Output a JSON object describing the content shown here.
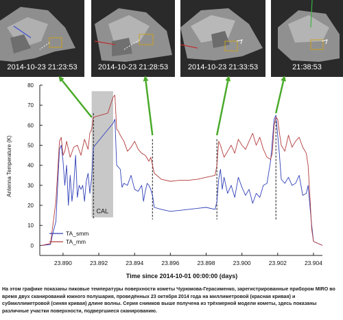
{
  "thumbnails": [
    {
      "label": "2014-10-23  21:23:53"
    },
    {
      "label": "2014-10-23  21:28:53"
    },
    {
      "label": "2014-10-23  21:33:53"
    },
    {
      "label": "21:38:53"
    }
  ],
  "chart_data": {
    "type": "line",
    "title": "",
    "xlabel": "Time since 2014-10-01 00:00:00 (days)",
    "ylabel": "Antenna Temperature (K)",
    "xlim": [
      23.8887,
      23.9045
    ],
    "ylim": [
      -5,
      80
    ],
    "xticks": [
      "23.890",
      "23.892",
      "23.894",
      "23.896",
      "23.898",
      "23.900",
      "23.902",
      "23.904"
    ],
    "yticks": [
      "0",
      "10",
      "20",
      "30",
      "40",
      "50",
      "60",
      "70",
      "80"
    ],
    "legend_position": "bottom-left",
    "grid": false,
    "cal_region": {
      "x": [
        23.8916,
        23.8928
      ],
      "label": "CAL"
    },
    "event_lines": [
      23.8917,
      23.895,
      23.8986,
      23.9019
    ],
    "series": [
      {
        "name": "TA_smm",
        "color": "#2f3fb8",
        "x": [
          23.8888,
          23.8893,
          23.8894,
          23.8896,
          23.8898,
          23.8899,
          23.89,
          23.8901,
          23.8902,
          23.8903,
          23.8904,
          23.8905,
          23.8906,
          23.8907,
          23.8908,
          23.8909,
          23.891,
          23.8911,
          23.8912,
          23.8913,
          23.8914,
          23.8915,
          23.8916,
          23.8917,
          23.8928,
          23.8929,
          23.893,
          23.8931,
          23.8932,
          23.8933,
          23.8934,
          23.8936,
          23.8938,
          23.894,
          23.8942,
          23.8944,
          23.8945,
          23.8946,
          23.8947,
          23.8948,
          23.8949,
          23.895,
          23.8951,
          23.8955,
          23.896,
          23.8965,
          23.897,
          23.8975,
          23.898,
          23.8985,
          23.8986,
          23.8987,
          23.8988,
          23.8989,
          23.899,
          23.8992,
          23.8994,
          23.8996,
          23.8998,
          23.9,
          23.9002,
          23.9004,
          23.9006,
          23.9008,
          23.901,
          23.9012,
          23.9014,
          23.9016,
          23.9017,
          23.9018,
          23.9019,
          23.902,
          23.9021,
          23.9022,
          23.9024,
          23.9026,
          23.9028,
          23.903,
          23.9032,
          23.9034,
          23.9036,
          23.9037,
          23.9038,
          23.9039,
          23.904,
          23.9045
        ],
        "y": [
          0,
          0.5,
          5,
          12,
          48,
          50,
          42,
          30,
          40,
          20,
          35,
          22,
          30,
          45,
          24,
          30,
          28,
          30,
          22,
          32,
          36,
          26,
          34,
          49,
          61,
          63,
          40,
          39,
          38,
          29,
          31,
          30,
          35,
          28,
          27,
          30,
          22,
          27,
          31,
          30,
          28,
          25,
          19,
          18,
          17,
          17.5,
          18,
          18.5,
          19,
          18,
          22,
          33,
          38,
          28,
          34,
          26,
          30,
          24,
          34,
          29,
          25,
          28,
          21,
          26,
          24,
          30,
          31,
          42,
          52,
          63,
          65,
          55,
          45,
          33,
          31,
          34,
          30,
          31,
          35,
          25,
          26,
          30,
          20,
          10,
          2,
          0
        ]
      },
      {
        "name": "TA_mm",
        "color": "#b23a3a",
        "x": [
          23.8888,
          23.8893,
          23.8894,
          23.8896,
          23.8898,
          23.8899,
          23.89,
          23.8901,
          23.8902,
          23.8904,
          23.8906,
          23.8908,
          23.891,
          23.8912,
          23.8914,
          23.8915,
          23.8916,
          23.8917,
          23.8925,
          23.8928,
          23.8929,
          23.893,
          23.8931,
          23.8932,
          23.8934,
          23.8936,
          23.8938,
          23.894,
          23.8942,
          23.8944,
          23.8946,
          23.8948,
          23.8949,
          23.895,
          23.8951,
          23.8955,
          23.896,
          23.8965,
          23.897,
          23.8975,
          23.898,
          23.8985,
          23.8986,
          23.8987,
          23.8988,
          23.899,
          23.8992,
          23.8994,
          23.8996,
          23.8998,
          23.9,
          23.9002,
          23.9004,
          23.9006,
          23.9008,
          23.901,
          23.9012,
          23.9014,
          23.9016,
          23.9017,
          23.9018,
          23.9019,
          23.902,
          23.9021,
          23.9022,
          23.9024,
          23.9026,
          23.9028,
          23.903,
          23.9032,
          23.9034,
          23.9036,
          23.9037,
          23.9038,
          23.9039,
          23.904,
          23.9045
        ],
        "y": [
          0,
          1,
          8,
          22,
          52,
          54,
          45,
          47,
          52,
          44,
          49,
          50,
          45,
          53,
          48,
          56,
          58,
          64,
          66,
          74,
          75,
          58,
          57,
          55,
          52,
          47,
          49,
          52,
          48,
          46,
          45,
          42,
          44,
          40,
          36,
          33,
          32,
          32.5,
          32.5,
          33,
          34,
          35,
          40,
          52,
          50,
          44,
          47,
          50,
          46,
          53,
          50,
          48,
          52,
          56,
          50,
          54,
          48,
          44,
          43,
          46,
          60,
          64,
          63,
          56,
          50,
          47,
          55,
          49,
          52,
          54,
          49,
          46,
          40,
          25,
          8,
          2,
          0
        ]
      }
    ]
  },
  "caption": "На этом графике показаны пиковые температуры поверхности кометы Чурюмова-Герасименко, зарегистрированные прибором MIRO во время двух сканирований южного полушария, проведённых 23 октября 2014 года на миллиметровой (красная кривая) и субмиллиметровой (синяя кривая) длине волны. Серия снимков выше получена из трёхмерной модели кометы, здесь показаны различные участки поверхности, подвергшиеся сканированию."
}
